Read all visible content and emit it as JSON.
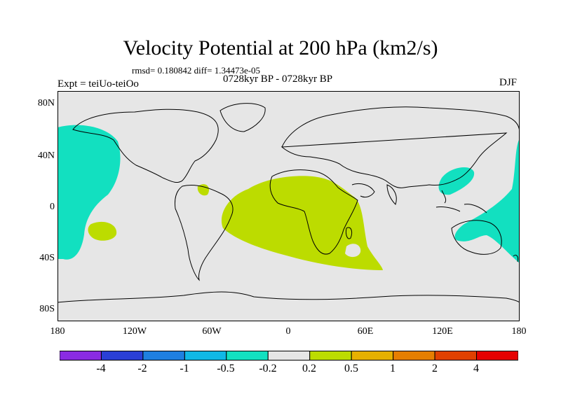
{
  "title": "Velocity Potential at 200 hPa (km2/s)",
  "stats": "rmsd= 0.180842 diff= 1.34473e-05",
  "experiment": "Expt = teiUo-teiOo",
  "period": "0728kyr BP - 0728kyr BP",
  "season": "DJF",
  "map": {
    "background": "#e6e6e6",
    "lat_ticks": [
      "80N",
      "40N",
      "0",
      "40S",
      "80S"
    ],
    "lon_ticks": [
      "180",
      "120W",
      "60W",
      "0",
      "60E",
      "120E",
      "180"
    ]
  },
  "colorbar": {
    "colors": [
      "#8a2be2",
      "#2a3fd6",
      "#1e7fe0",
      "#10b8e6",
      "#12e0c0",
      "#e6e6e6",
      "#bcdc00",
      "#e6b000",
      "#e67e00",
      "#e04000",
      "#e60000"
    ],
    "labels": [
      "-4",
      "-2",
      "-1",
      "-0.5",
      "-0.2",
      "0.2",
      "0.5",
      "1",
      "2",
      "4"
    ]
  }
}
